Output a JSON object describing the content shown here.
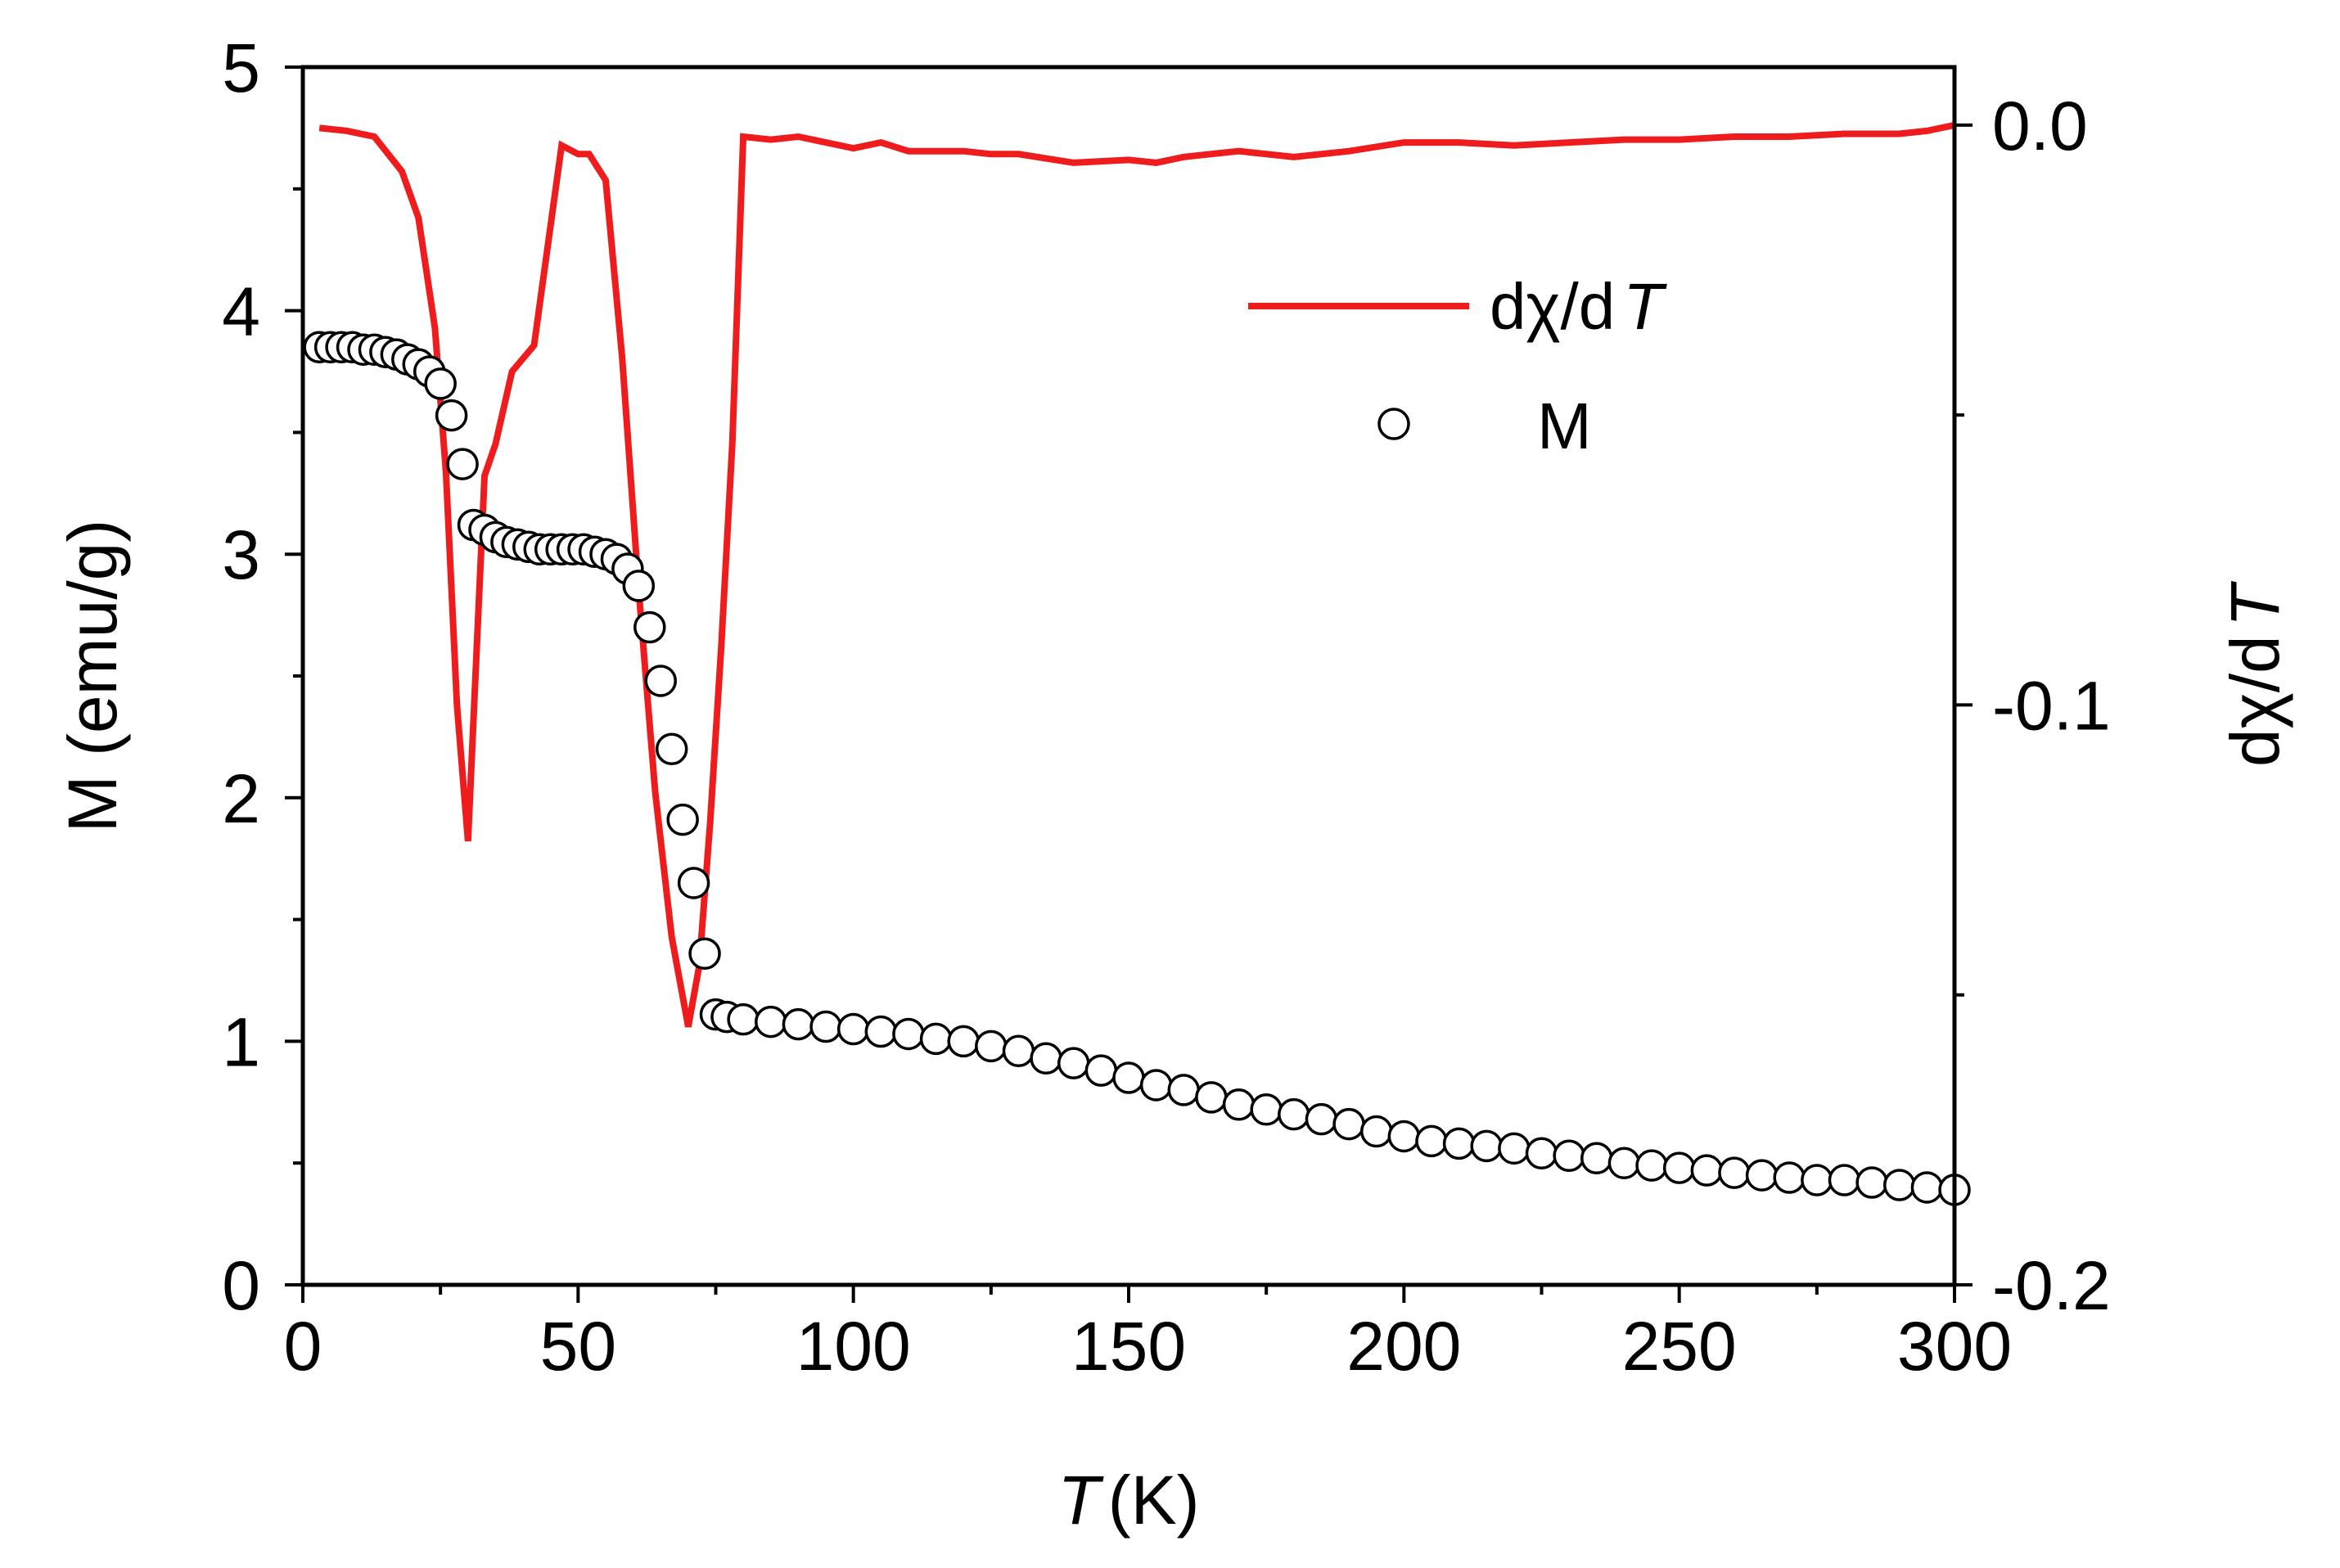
{
  "colors": {
    "derivative_line": "#ee1c1c",
    "marker_stroke": "#000000",
    "marker_fill": "#ffffff",
    "axis": "#000000"
  },
  "chart_data": {
    "type": "line",
    "title": "",
    "x_axis": {
      "label_italic": "T",
      "label_unit": "(K)",
      "range": [
        0,
        300
      ],
      "ticks": [
        0,
        50,
        100,
        150,
        200,
        250,
        300
      ],
      "tick_labels": [
        "0",
        "50",
        "100",
        "150",
        "200",
        "250",
        "300"
      ]
    },
    "y_left_axis": {
      "label": "M (emu/g)",
      "range": [
        0,
        5
      ],
      "ticks": [
        0,
        1,
        2,
        3,
        4,
        5
      ],
      "tick_labels": [
        "0",
        "1",
        "2",
        "3",
        "4",
        "5"
      ]
    },
    "y_right_axis": {
      "label_prefix": "dχ/d",
      "label_italic": "T",
      "range": [
        -0.2,
        0.01
      ],
      "ticks": [
        0.0,
        -0.1,
        -0.2
      ],
      "tick_labels": [
        "0.0",
        "-0.1",
        "-0.2"
      ]
    },
    "legend": {
      "placement": "top-right",
      "entries": [
        {
          "series": "dchi_dT",
          "text_prefix": "dχ/d",
          "text_italic": "T"
        },
        {
          "series": "M",
          "text_prefix": "M",
          "text_italic": ""
        }
      ]
    },
    "series": [
      {
        "name": "dχ/dT",
        "key": "dchi_dT",
        "axis": "right",
        "style": "line",
        "x": [
          3,
          8,
          13,
          18,
          21,
          24,
          26,
          28,
          30,
          33,
          35,
          38,
          42,
          47,
          50,
          52,
          55,
          58,
          61,
          64,
          67,
          70,
          72,
          74,
          76,
          78,
          80,
          85,
          90,
          95,
          100,
          105,
          110,
          115,
          120,
          125,
          130,
          140,
          150,
          155,
          160,
          170,
          180,
          190,
          200,
          210,
          220,
          230,
          240,
          250,
          260,
          270,
          280,
          290,
          295,
          300
        ],
        "y": [
          -0.0005,
          -0.001,
          -0.002,
          -0.008,
          -0.016,
          -0.035,
          -0.06,
          -0.1,
          -0.1235,
          -0.0605,
          -0.055,
          -0.0425,
          -0.038,
          -0.0035,
          -0.005,
          -0.005,
          -0.0095,
          -0.04,
          -0.08,
          -0.115,
          -0.14,
          -0.1555,
          -0.145,
          -0.12,
          -0.09,
          -0.055,
          -0.002,
          -0.0025,
          -0.002,
          -0.003,
          -0.004,
          -0.003,
          -0.0045,
          -0.0045,
          -0.0045,
          -0.005,
          -0.005,
          -0.0065,
          -0.006,
          -0.0065,
          -0.0055,
          -0.0045,
          -0.0055,
          -0.0045,
          -0.003,
          -0.003,
          -0.0035,
          -0.003,
          -0.0025,
          -0.0025,
          -0.002,
          -0.002,
          -0.0015,
          -0.0015,
          -0.001,
          0.0
        ]
      },
      {
        "name": "M",
        "key": "M",
        "axis": "left",
        "style": "markers",
        "marker": "open-circle",
        "x": [
          3,
          5,
          7,
          9,
          11,
          13,
          15,
          17,
          19,
          21,
          23,
          25,
          27,
          29,
          31,
          33,
          35,
          37,
          39,
          41,
          43,
          45,
          47,
          49,
          51,
          53,
          55,
          57,
          59,
          61,
          63,
          65,
          67,
          69,
          71,
          73,
          75,
          77,
          80,
          85,
          90,
          95,
          100,
          105,
          110,
          115,
          120,
          125,
          130,
          135,
          140,
          145,
          150,
          155,
          160,
          165,
          170,
          175,
          180,
          185,
          190,
          195,
          200,
          205,
          210,
          215,
          220,
          225,
          230,
          235,
          240,
          245,
          250,
          255,
          260,
          265,
          270,
          275,
          280,
          285,
          290,
          295,
          300
        ],
        "y": [
          3.85,
          3.85,
          3.85,
          3.85,
          3.84,
          3.84,
          3.83,
          3.82,
          3.8,
          3.78,
          3.75,
          3.7,
          3.57,
          3.37,
          3.12,
          3.1,
          3.07,
          3.05,
          3.04,
          3.03,
          3.02,
          3.02,
          3.02,
          3.02,
          3.02,
          3.01,
          3.0,
          2.98,
          2.94,
          2.87,
          2.7,
          2.48,
          2.2,
          1.91,
          1.65,
          1.36,
          1.11,
          1.1,
          1.09,
          1.08,
          1.07,
          1.06,
          1.05,
          1.04,
          1.03,
          1.01,
          1.0,
          0.98,
          0.96,
          0.93,
          0.91,
          0.88,
          0.85,
          0.82,
          0.8,
          0.77,
          0.74,
          0.72,
          0.7,
          0.68,
          0.66,
          0.63,
          0.61,
          0.59,
          0.58,
          0.57,
          0.56,
          0.54,
          0.53,
          0.52,
          0.5,
          0.49,
          0.48,
          0.47,
          0.46,
          0.45,
          0.44,
          0.43,
          0.43,
          0.42,
          0.41,
          0.4,
          0.39
        ]
      }
    ]
  }
}
